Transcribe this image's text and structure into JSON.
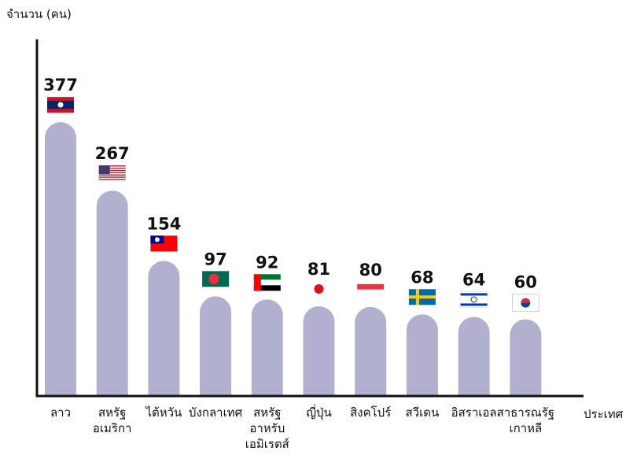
{
  "chart_data": {
    "type": "bar",
    "y_label": "จำนวน (คน)",
    "x_label": "ประเทศ",
    "categories": [
      "ลาว",
      "สหรัฐ\nอเมริกา",
      "ไต้หวัน",
      "บังกลาเทศ",
      "สหรัฐ\nอาหรับ\nเอมิเรตส์",
      "ญี่ปุ่น",
      "สิงคโปร์",
      "สวีเดน",
      "อิสราเอล",
      "สาธารณรัฐ\nเกาหลี"
    ],
    "values": [
      377,
      267,
      154,
      97,
      92,
      81,
      80,
      68,
      64,
      60
    ],
    "color": "#b1b0cf"
  }
}
